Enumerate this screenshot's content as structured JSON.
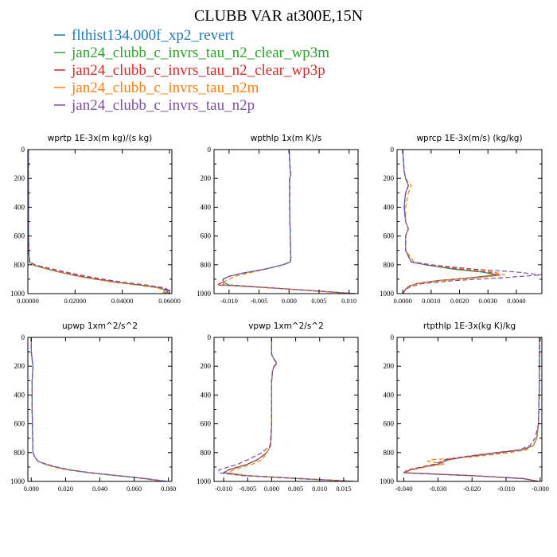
{
  "title": "CLUBB VAR at300E,15N",
  "legend": [
    {
      "label": "flthist134.000f_xp2_revert",
      "color": "#1f77b4"
    },
    {
      "label": "jan24_clubb_c_invrs_tau_n2_clear_wp3m",
      "color": "#2ca02c"
    },
    {
      "label": "jan24_clubb_c_invrs_tau_n2_clear_wp3p",
      "color": "#d62728"
    },
    {
      "label": "jan24_clubb_c_invrs_tau_n2m",
      "color": "#ff7f0e"
    },
    {
      "label": "jan24_clubb_c_invrs_tau_n2p",
      "color": "#7b4fa0"
    }
  ],
  "chart_data": [
    {
      "type": "line",
      "title": "wprtp  1E-3x(m kg)/(s kg)",
      "ylim": [
        1000,
        0
      ],
      "xlim": [
        0,
        0.061
      ],
      "xticks": [
        "0.00000",
        "0.02000",
        "0.04000",
        "0.06000"
      ],
      "xtick_values": [
        0,
        0.02,
        0.04,
        0.06
      ],
      "yticks": [
        "0",
        "200",
        "400",
        "600",
        "800",
        "1000"
      ],
      "y": [
        0,
        100,
        200,
        300,
        400,
        500,
        600,
        700,
        780,
        800,
        820,
        850,
        880,
        900,
        920,
        940,
        960,
        980,
        1000
      ],
      "series": [
        {
          "values": [
            0.0002,
            0.0002,
            0.0002,
            0.0003,
            0.0003,
            0.0003,
            0.0003,
            0.0004,
            0.0006,
            0.002,
            0.006,
            0.013,
            0.022,
            0.029,
            0.037,
            0.047,
            0.056,
            0.059,
            0.0595
          ]
        },
        {
          "values": [
            0.0002,
            0.0002,
            0.0002,
            0.0003,
            0.0003,
            0.0003,
            0.0003,
            0.0004,
            0.0006,
            0.002,
            0.006,
            0.013,
            0.022,
            0.029,
            0.037,
            0.047,
            0.056,
            0.058,
            0.058
          ]
        },
        {
          "values": [
            0.0002,
            0.0002,
            0.0002,
            0.0003,
            0.0003,
            0.0003,
            0.0003,
            0.0004,
            0.0007,
            0.003,
            0.007,
            0.014,
            0.023,
            0.03,
            0.038,
            0.048,
            0.057,
            0.06,
            0.058
          ]
        },
        {
          "values": [
            0.0002,
            0.0002,
            0.0002,
            0.0003,
            0.0003,
            0.0003,
            0.0003,
            0.0004,
            0.0006,
            0.002,
            0.006,
            0.013,
            0.021,
            0.028,
            0.036,
            0.046,
            0.055,
            0.058,
            0.057
          ]
        },
        {
          "values": [
            0.0002,
            0.0002,
            0.0002,
            0.0003,
            0.0003,
            0.0003,
            0.0003,
            0.0004,
            0.0008,
            0.003,
            0.008,
            0.016,
            0.025,
            0.032,
            0.04,
            0.05,
            0.058,
            0.06,
            0.0595
          ]
        }
      ]
    },
    {
      "type": "line",
      "title": "wpthlp  1x(m K)/s",
      "ylim": [
        1000,
        0
      ],
      "xlim": [
        -0.0125,
        0.0115
      ],
      "xticks": [
        "-0.010",
        "-0.005",
        "0.000",
        "0.005",
        "0.010"
      ],
      "xtick_values": [
        -0.01,
        -0.005,
        0,
        0.005,
        0.01
      ],
      "yticks": [
        "0",
        "200",
        "400",
        "600",
        "800",
        "1000"
      ],
      "y": [
        0,
        150,
        170,
        200,
        400,
        600,
        750,
        780,
        800,
        830,
        860,
        880,
        900,
        920,
        940,
        960,
        980,
        1000
      ],
      "series": [
        {
          "values": [
            0,
            0.0002,
            0.0003,
            0.0001,
            0.0001,
            0.0002,
            0.0003,
            0.0002,
            -0.001,
            -0.004,
            -0.008,
            -0.01,
            -0.011,
            -0.011,
            -0.01,
            -0.003,
            0.004,
            0.011
          ]
        },
        {
          "values": [
            0,
            0.0002,
            0.0003,
            0.0001,
            0.0001,
            0.0002,
            0.0003,
            0.0002,
            -0.001,
            -0.004,
            -0.008,
            -0.01,
            -0.011,
            -0.011,
            -0.01,
            -0.003,
            0.004,
            0.011
          ]
        },
        {
          "values": [
            0,
            0.0002,
            0.0003,
            0.0001,
            0.0001,
            0.0002,
            0.0003,
            0.0002,
            -0.001,
            -0.004,
            -0.008,
            -0.01,
            -0.011,
            -0.011,
            -0.012,
            -0.003,
            0.004,
            0.011
          ]
        },
        {
          "values": [
            0,
            0.0002,
            0.0003,
            0.0001,
            0.0001,
            0.0002,
            0.0003,
            0.0002,
            -0.001,
            -0.004,
            -0.007,
            -0.009,
            -0.01,
            -0.011,
            -0.011,
            -0.003,
            0.004,
            0.011
          ]
        },
        {
          "values": [
            0,
            0.0002,
            0.0003,
            0.0001,
            0.0001,
            0.0002,
            0.0003,
            0.0002,
            -0.001,
            -0.004,
            -0.008,
            -0.01,
            -0.011,
            -0.011,
            -0.011,
            -0.003,
            0.004,
            0.011
          ]
        }
      ]
    },
    {
      "type": "line",
      "title": "wprcp  1E-3x(m/s) (kg/kg)",
      "ylim": [
        1000,
        0
      ],
      "xlim": [
        -0.0002,
        0.0049
      ],
      "xticks": [
        "0.0000",
        "0.0010",
        "0.0020",
        "0.0030",
        "0.0040"
      ],
      "xtick_values": [
        0,
        0.001,
        0.002,
        0.003,
        0.004
      ],
      "yticks": [
        "0",
        "200",
        "400",
        "600",
        "800",
        "1000"
      ],
      "y": [
        0,
        150,
        200,
        250,
        300,
        400,
        500,
        550,
        600,
        700,
        780,
        800,
        830,
        850,
        870,
        890,
        910,
        930,
        950,
        970,
        1000
      ],
      "series": [
        {
          "values": [
            0,
            5e-05,
            0.0001,
            0.0002,
            0.0001,
            5e-05,
            0.0001,
            0.0002,
            0.0001,
            0.0001,
            0.0003,
            0.0008,
            0.0018,
            0.0028,
            0.0033,
            0.0024,
            0.0012,
            0.0005,
            0.0002,
            0.0001,
            0
          ]
        },
        {
          "values": [
            0,
            5e-05,
            0.0001,
            0.0002,
            0.0001,
            5e-05,
            0.0001,
            0.0002,
            0.0001,
            0.0001,
            0.0003,
            0.0008,
            0.0018,
            0.0028,
            0.0033,
            0.0024,
            0.0012,
            0.0005,
            0.0002,
            0.0001,
            0
          ]
        },
        {
          "values": [
            0,
            5e-05,
            0.0001,
            0.0002,
            0.0001,
            5e-05,
            0.0001,
            0.0002,
            0.0001,
            0.0001,
            0.0003,
            0.0009,
            0.002,
            0.003,
            0.0034,
            0.0025,
            0.0013,
            0.0005,
            0.0002,
            0.0001,
            0
          ]
        },
        {
          "values": [
            0,
            5e-05,
            0.0001,
            0.0003,
            0.0002,
            0.0001,
            0.0001,
            0.0002,
            0.0001,
            0.0001,
            0.0004,
            0.001,
            0.0022,
            0.0032,
            0.0036,
            0.0026,
            0.0013,
            0.0005,
            0.0002,
            0.0001,
            0
          ]
        },
        {
          "values": [
            0,
            5e-05,
            0.0001,
            0.0002,
            0.0001,
            5e-05,
            0.0001,
            0.0002,
            0.0001,
            0.0001,
            0.0003,
            0.001,
            0.0025,
            0.004,
            0.0049,
            0.0035,
            0.0018,
            0.0007,
            0.0003,
            0.0001,
            0
          ]
        }
      ]
    },
    {
      "type": "line",
      "title": "upwp  1xm^2/s^2",
      "ylim": [
        1000,
        0
      ],
      "xlim": [
        -0.002,
        0.082
      ],
      "xticks": [
        "0.000",
        "0.020",
        "0.040",
        "0.060",
        "0.080"
      ],
      "xtick_values": [
        0,
        0.02,
        0.04,
        0.06,
        0.08
      ],
      "yticks": [
        "0",
        "200",
        "400",
        "600",
        "800",
        "1000"
      ],
      "y": [
        0,
        100,
        200,
        300,
        500,
        700,
        800,
        830,
        860,
        880,
        900,
        920,
        940,
        960,
        980,
        1000
      ],
      "series": [
        {
          "values": [
            0,
            0,
            0.001,
            0.0005,
            0.0005,
            0.0008,
            0.001,
            0.002,
            0.004,
            0.008,
            0.014,
            0.022,
            0.034,
            0.05,
            0.066,
            0.078
          ]
        },
        {
          "values": [
            0,
            0,
            0.001,
            0.0005,
            0.0005,
            0.0008,
            0.001,
            0.002,
            0.004,
            0.008,
            0.014,
            0.022,
            0.034,
            0.05,
            0.066,
            0.078
          ]
        },
        {
          "values": [
            0,
            0,
            0.001,
            0.0005,
            0.0005,
            0.0008,
            0.001,
            0.002,
            0.004,
            0.008,
            0.014,
            0.022,
            0.034,
            0.05,
            0.066,
            0.078
          ]
        },
        {
          "values": [
            0,
            0,
            0.001,
            0.0005,
            0.0005,
            0.0008,
            0.001,
            0.002,
            0.004,
            0.008,
            0.013,
            0.021,
            0.033,
            0.049,
            0.065,
            0.077
          ]
        },
        {
          "values": [
            0,
            0,
            0.001,
            0.0005,
            0.0005,
            0.0008,
            0.001,
            0.002,
            0.004,
            0.009,
            0.015,
            0.023,
            0.035,
            0.051,
            0.067,
            0.079
          ]
        }
      ]
    },
    {
      "type": "line",
      "title": "vpwp  1xm^2/s^2",
      "ylim": [
        1000,
        0
      ],
      "xlim": [
        -0.012,
        0.018
      ],
      "xticks": [
        "-0.010",
        "-0.005",
        "0.000",
        "0.005",
        "0.010",
        "0.015"
      ],
      "xtick_values": [
        -0.01,
        -0.005,
        0,
        0.005,
        0.01,
        0.015
      ],
      "yticks": [
        "0",
        "200",
        "400",
        "600",
        "800",
        "1000"
      ],
      "y": [
        0,
        120,
        150,
        180,
        200,
        230,
        300,
        400,
        600,
        750,
        800,
        850,
        880,
        900,
        920,
        940,
        960,
        980,
        1000
      ],
      "series": [
        {
          "values": [
            0,
            0,
            0.0005,
            0.001,
            0.0005,
            0.0002,
            0,
            0,
            0,
            -0.0002,
            -0.001,
            -0.003,
            -0.005,
            -0.007,
            -0.009,
            -0.01,
            -0.005,
            0.006,
            0.017
          ]
        },
        {
          "values": [
            0,
            0,
            0.0005,
            0.001,
            0.0005,
            0.0002,
            0,
            0,
            0,
            -0.0002,
            -0.001,
            -0.003,
            -0.005,
            -0.007,
            -0.009,
            -0.01,
            -0.005,
            0.006,
            0.017
          ]
        },
        {
          "values": [
            0,
            0,
            0.0005,
            0.001,
            0.0005,
            0.0002,
            0,
            0,
            0,
            -0.0002,
            -0.001,
            -0.003,
            -0.005,
            -0.007,
            -0.009,
            -0.01,
            -0.005,
            0.006,
            0.017
          ]
        },
        {
          "values": [
            0,
            0,
            0.0005,
            0.0012,
            0.0006,
            0.0002,
            0,
            0,
            0,
            -0.0002,
            -0.001,
            -0.002,
            -0.004,
            -0.006,
            -0.008,
            -0.009,
            -0.005,
            0.006,
            0.017
          ]
        },
        {
          "values": [
            0,
            0,
            0.0005,
            0.001,
            0.0005,
            0.0002,
            0,
            0,
            0,
            -0.0003,
            -0.002,
            -0.005,
            -0.007,
            -0.009,
            -0.011,
            -0.011,
            -0.006,
            0.005,
            0.017
          ]
        }
      ]
    },
    {
      "type": "line",
      "title": "rtpthlp  1E-3x(kg K)/kg",
      "ylim": [
        1000,
        0
      ],
      "xlim": [
        -0.042,
        0.0005
      ],
      "xticks": [
        "-0.040",
        "-0.030",
        "-0.020",
        "-0.010",
        "-0.000"
      ],
      "xtick_values": [
        -0.04,
        -0.03,
        -0.02,
        -0.01,
        0
      ],
      "yticks": [
        "0",
        "200",
        "400",
        "600",
        "800",
        "1000"
      ],
      "y": [
        0,
        200,
        400,
        600,
        700,
        750,
        780,
        800,
        830,
        850,
        860,
        880,
        900,
        920,
        940,
        960,
        980,
        1000
      ],
      "series": [
        {
          "values": [
            -0.0002,
            -0.0002,
            -0.0003,
            -0.0005,
            -0.001,
            -0.002,
            -0.005,
            -0.012,
            -0.022,
            -0.027,
            -0.028,
            -0.03,
            -0.034,
            -0.038,
            -0.04,
            -0.02,
            -0.005,
            -0.0005
          ]
        },
        {
          "values": [
            -0.0002,
            -0.0002,
            -0.0003,
            -0.0005,
            -0.001,
            -0.002,
            -0.005,
            -0.012,
            -0.022,
            -0.027,
            -0.028,
            -0.03,
            -0.034,
            -0.038,
            -0.04,
            -0.02,
            -0.005,
            -0.0005
          ]
        },
        {
          "values": [
            -0.0002,
            -0.0002,
            -0.0003,
            -0.0005,
            -0.001,
            -0.002,
            -0.005,
            -0.012,
            -0.022,
            -0.027,
            -0.028,
            -0.03,
            -0.034,
            -0.038,
            -0.04,
            -0.02,
            -0.005,
            -0.0005
          ]
        },
        {
          "values": [
            -0.0002,
            -0.0002,
            -0.0003,
            -0.0005,
            -0.001,
            -0.002,
            -0.004,
            -0.009,
            -0.02,
            -0.032,
            -0.033,
            -0.028,
            -0.034,
            -0.038,
            -0.04,
            -0.02,
            -0.005,
            -0.0005
          ]
        },
        {
          "values": [
            -0.0002,
            -0.0002,
            -0.0003,
            -0.0005,
            -0.0015,
            -0.003,
            -0.006,
            -0.013,
            -0.023,
            -0.028,
            -0.029,
            -0.031,
            -0.035,
            -0.039,
            -0.04,
            -0.02,
            -0.005,
            -0.0005
          ]
        }
      ]
    }
  ]
}
